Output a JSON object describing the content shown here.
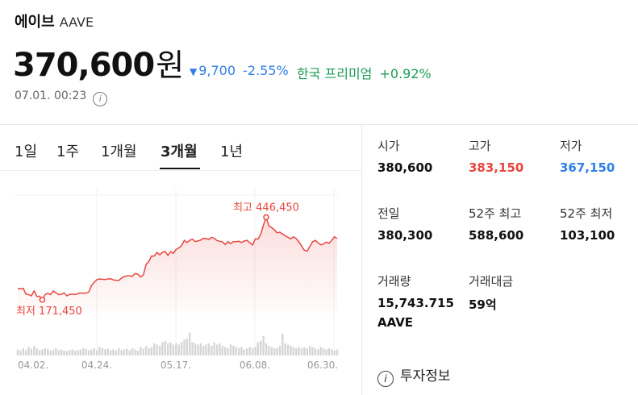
{
  "coin": {
    "name": "에이브",
    "symbol": "AAVE"
  },
  "price": {
    "value": "370,600",
    "unit": "원"
  },
  "change": {
    "arrow": "▼",
    "amount": "9,700",
    "percent": "-2.55%",
    "premium_label": "한국 프리미엄",
    "premium_value": "+0.92%"
  },
  "timestamp": "07.01. 00:23",
  "tabs": [
    {
      "label": "1일",
      "active": false
    },
    {
      "label": "1주",
      "active": false
    },
    {
      "label": "1개월",
      "active": false
    },
    {
      "label": "3개월",
      "active": true
    },
    {
      "label": "1년",
      "active": false
    }
  ],
  "chart_data": {
    "type": "area",
    "x_ticks": [
      "04.02.",
      "04.24.",
      "05.17.",
      "06.08.",
      "06.30."
    ],
    "annotations": {
      "high_label": "최고",
      "high_value": "446,450",
      "low_label": "최저",
      "low_value": "171,450"
    },
    "high": 446450,
    "low": 171450,
    "ylim": [
      130000,
      520000
    ],
    "values": [
      210000,
      210000,
      211000,
      192000,
      190000,
      186000,
      202000,
      184000,
      185000,
      173000,
      190000,
      195000,
      190000,
      202000,
      196000,
      190000,
      191000,
      196000,
      186000,
      191000,
      192000,
      190000,
      193000,
      196000,
      194000,
      196000,
      198000,
      220000,
      231000,
      240000,
      242000,
      241000,
      240000,
      242000,
      243000,
      239000,
      238000,
      237000,
      245000,
      250000,
      252000,
      252000,
      251000,
      260000,
      258000,
      249000,
      255000,
      290000,
      300000,
      318000,
      318000,
      330000,
      322000,
      330000,
      333000,
      320000,
      333000,
      327000,
      340000,
      345000,
      352000,
      370000,
      363000,
      370000,
      374000,
      366000,
      368000,
      371000,
      377000,
      376000,
      373000,
      380000,
      377000,
      369000,
      367000,
      365000,
      356000,
      366000,
      359000,
      366000,
      366000,
      367000,
      363000,
      368000,
      370000,
      362000,
      355000,
      375000,
      374000,
      390000,
      420000,
      446450,
      418000,
      412000,
      405000,
      395000,
      397000,
      391000,
      385000,
      380000,
      375000,
      382000,
      376000,
      365000,
      351000,
      337000,
      334000,
      350000,
      365000,
      370000,
      362000,
      355000,
      358000,
      364000,
      360000,
      370000,
      382000,
      376000
    ],
    "volumes": [
      0.25,
      0.2,
      0.3,
      0.22,
      0.35,
      0.28,
      0.4,
      0.3,
      0.22,
      0.25,
      0.3,
      0.28,
      0.2,
      0.25,
      0.3,
      0.22,
      0.25,
      0.2,
      0.18,
      0.22,
      0.25,
      0.2,
      0.22,
      0.25,
      0.3,
      0.28,
      0.22,
      0.25,
      0.3,
      0.22,
      0.35,
      0.3,
      0.25,
      0.28,
      0.22,
      0.25,
      0.2,
      0.3,
      0.22,
      0.25,
      0.28,
      0.22,
      0.3,
      0.25,
      0.2,
      0.35,
      0.28,
      0.4,
      0.3,
      0.35,
      0.5,
      0.45,
      0.4,
      0.55,
      0.6,
      0.5,
      0.55,
      0.45,
      0.5,
      0.45,
      0.55,
      0.65,
      0.7,
      0.95,
      0.55,
      0.5,
      0.45,
      0.5,
      0.4,
      0.45,
      0.5,
      0.4,
      0.55,
      0.45,
      0.5,
      0.4,
      0.35,
      0.3,
      0.45,
      0.4,
      0.35,
      0.3,
      0.35,
      0.25,
      0.3,
      0.35,
      0.3,
      0.35,
      0.55,
      0.6,
      0.8,
      0.5,
      0.4,
      0.35,
      0.3,
      0.3,
      0.4,
      0.9,
      0.5,
      0.45,
      0.4,
      0.35,
      0.3,
      0.35,
      0.3,
      0.35,
      0.3,
      0.4,
      0.35,
      0.3,
      0.25,
      0.35,
      0.3,
      0.25,
      0.3,
      0.25,
      0.2,
      0.25
    ],
    "color": "#e8463f",
    "grid": true
  },
  "stats": {
    "open": {
      "label": "시가",
      "value": "380,600"
    },
    "high": {
      "label": "고가",
      "value": "383,150"
    },
    "low": {
      "label": "저가",
      "value": "367,150"
    },
    "prev": {
      "label": "전일",
      "value": "380,300"
    },
    "high52": {
      "label": "52주 최고",
      "value": "588,600"
    },
    "low52": {
      "label": "52주 최저",
      "value": "103,100"
    },
    "volume": {
      "label": "거래량",
      "value": "15,743.715",
      "unit": "AAVE"
    },
    "amount": {
      "label": "거래대금",
      "value": "59억"
    }
  },
  "invest_info": {
    "label": "투자정보"
  },
  "colors": {
    "up": "#e8463f",
    "down": "#2f80e8",
    "premium": "#1a9e57"
  }
}
